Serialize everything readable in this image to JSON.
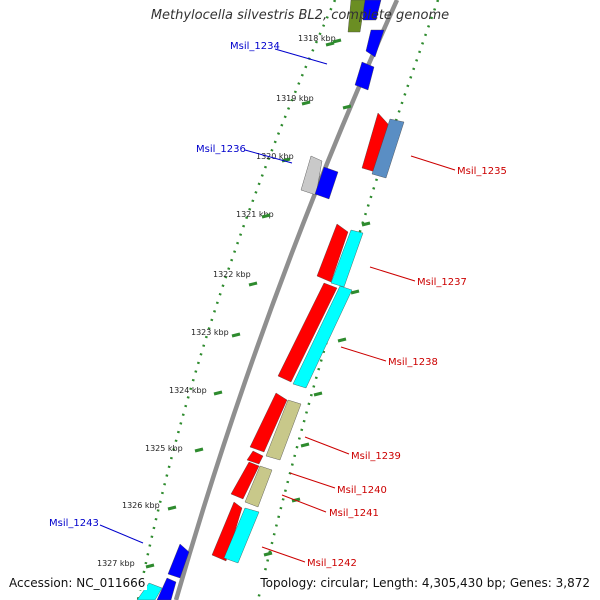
{
  "title": "Methylocella silvestris BL2, complete genome",
  "accession": "Accession: NC_011666",
  "topology": "Topology: circular; Length: 4,305,430 bp; Genes: 3,872",
  "ticks": [
    "1318 kbp",
    "1319 kbp",
    "1320 kbp",
    "1321 kbp",
    "1322 kbp",
    "1323 kbp",
    "1324 kbp",
    "1325 kbp",
    "1326 kbp",
    "1327 kbp"
  ],
  "genes": [
    {
      "name": "Msil_1234",
      "color": "#0000cc"
    },
    {
      "name": "Msil_1235",
      "color": "#cc0000"
    },
    {
      "name": "Msil_1236",
      "color": "#0000cc"
    },
    {
      "name": "Msil_1237",
      "color": "#cc0000"
    },
    {
      "name": "Msil_1238",
      "color": "#cc0000"
    },
    {
      "name": "Msil_1239",
      "color": "#cc0000"
    },
    {
      "name": "Msil_1240",
      "color": "#cc0000"
    },
    {
      "name": "Msil_1241",
      "color": "#cc0000"
    },
    {
      "name": "Msil_1242",
      "color": "#cc0000"
    },
    {
      "name": "Msil_1243",
      "color": "#0000cc"
    }
  ],
  "colors": {
    "backbone": "#8f8f8f",
    "dots": "#2e8b2e",
    "red": "#ff0000",
    "blue": "#0000ff",
    "cyan": "#00ffff",
    "olive": "#c8c88a",
    "steel": "#5a8ec4",
    "grey": "#c9c9c9",
    "green": "#6b8e23"
  }
}
